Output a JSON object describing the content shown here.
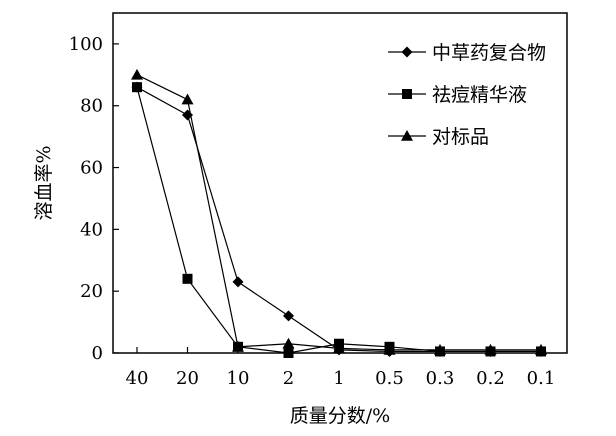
{
  "chart_data": {
    "type": "line",
    "categories": [
      "40",
      "20",
      "10",
      "2",
      "1",
      "0.5",
      "0.3",
      "0.2",
      "0.1"
    ],
    "xlabel": "质量分数/%",
    "ylabel": "溶血率%",
    "ylim": [
      0,
      110
    ],
    "yticks": [
      0,
      20,
      40,
      60,
      80,
      100
    ],
    "grid": false,
    "legend_position": "top-right",
    "series": [
      {
        "name": "中草药复合物",
        "marker": "diamond",
        "values": [
          86,
          77,
          23,
          12,
          1,
          0.5,
          0.5,
          0.5,
          0.5
        ]
      },
      {
        "name": "祛痘精华液",
        "marker": "square",
        "values": [
          86,
          24,
          2,
          0,
          3,
          2,
          0.5,
          0.5,
          0.5
        ]
      },
      {
        "name": "对标品",
        "marker": "triangle",
        "values": [
          90,
          82,
          2,
          3,
          1.5,
          1,
          1,
          1,
          1
        ]
      }
    ]
  },
  "colors": {
    "line": "#000000",
    "background": "#ffffff"
  }
}
